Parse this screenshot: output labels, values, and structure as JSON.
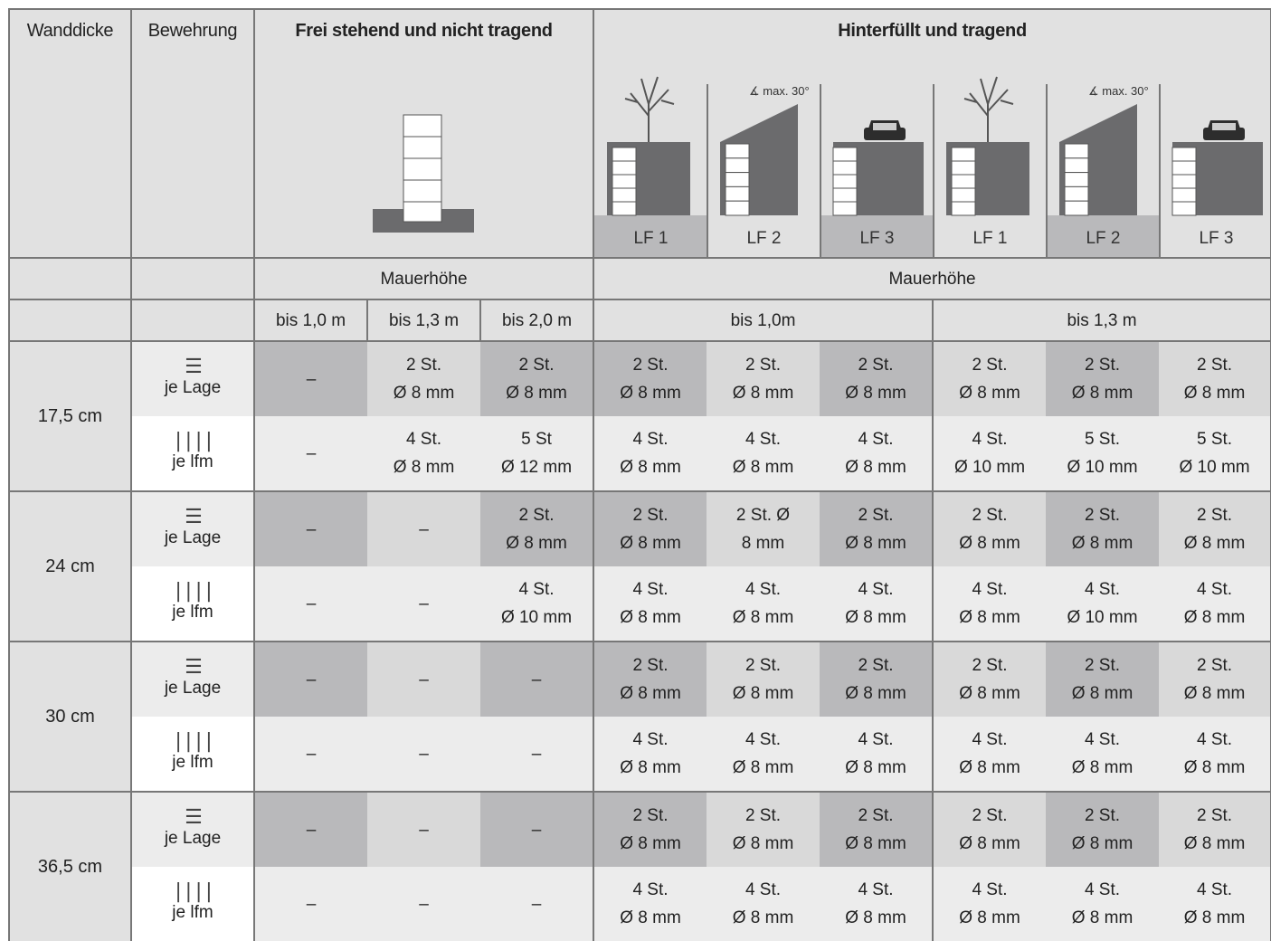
{
  "header": {
    "wanddicke": "Wanddicke",
    "bewehrung": "Bewehrung",
    "frei": "Frei stehend und nicht tragend",
    "hinter": "Hinterfüllt und tragend",
    "lf_labels": [
      "LF 1",
      "LF 2",
      "LF 3",
      "LF 1",
      "LF 2",
      "LF 3"
    ],
    "slope_label": "max. 30°"
  },
  "mauerhoehe_left": "Mauerhöhe",
  "mauerhoehe_right": "Mauerhöhe",
  "heights_left": [
    "bis 1,0  m",
    "bis 1,3 m",
    "bis 2,0 m"
  ],
  "heights_right": [
    "bis 1,0m",
    "bis 1,3 m"
  ],
  "bew": {
    "lage": "je Lage",
    "lfm": "je lfm"
  },
  "groups": [
    {
      "wall": "17,5 cm",
      "lage": [
        [
          "–"
        ],
        [
          "2 St.",
          "Ø 8 mm"
        ],
        [
          "2 St.",
          "Ø 8 mm"
        ],
        [
          "2 St.",
          "Ø 8 mm"
        ],
        [
          "2 St.",
          "Ø 8 mm"
        ],
        [
          "2 St.",
          "Ø 8 mm"
        ],
        [
          "2 St.",
          "Ø 8 mm"
        ],
        [
          "2 St.",
          "Ø 8 mm"
        ],
        [
          "2 St.",
          "Ø 8 mm"
        ]
      ],
      "lfm": [
        [
          "–"
        ],
        [
          "4 St.",
          "Ø 8 mm"
        ],
        [
          "5 St",
          "Ø 12 mm"
        ],
        [
          "4 St.",
          "Ø 8 mm"
        ],
        [
          "4 St.",
          "Ø 8 mm"
        ],
        [
          "4 St.",
          "Ø 8 mm"
        ],
        [
          "4 St.",
          "Ø 10 mm"
        ],
        [
          "5 St.",
          "Ø 10 mm"
        ],
        [
          "5 St.",
          "Ø 10 mm"
        ]
      ]
    },
    {
      "wall": "24 cm",
      "lage": [
        [
          "–"
        ],
        [
          "–"
        ],
        [
          "2 St.",
          "Ø 8 mm"
        ],
        [
          "2 St.",
          "Ø 8 mm"
        ],
        [
          "2 St. Ø",
          "8 mm"
        ],
        [
          "2 St.",
          "Ø 8 mm"
        ],
        [
          "2 St.",
          "Ø 8 mm"
        ],
        [
          "2 St.",
          "Ø 8 mm"
        ],
        [
          "2 St.",
          "Ø 8 mm"
        ]
      ],
      "lfm": [
        [
          "–"
        ],
        [
          "–"
        ],
        [
          "4 St.",
          "Ø 10 mm"
        ],
        [
          "4 St.",
          "Ø 8 mm"
        ],
        [
          "4 St.",
          "Ø 8 mm"
        ],
        [
          "4 St.",
          "Ø 8 mm"
        ],
        [
          "4 St.",
          "Ø 8 mm"
        ],
        [
          "4 St.",
          "Ø 10 mm"
        ],
        [
          "4 St.",
          "Ø 8 mm"
        ]
      ]
    },
    {
      "wall": "30 cm",
      "lage": [
        [
          "–"
        ],
        [
          "–"
        ],
        [
          "–"
        ],
        [
          "2 St.",
          "Ø 8 mm"
        ],
        [
          "2 St.",
          "Ø 8 mm"
        ],
        [
          "2 St.",
          "Ø 8 mm"
        ],
        [
          "2 St.",
          "Ø 8 mm"
        ],
        [
          "2 St.",
          "Ø 8 mm"
        ],
        [
          "2 St.",
          "Ø 8 mm"
        ]
      ],
      "lfm": [
        [
          "–"
        ],
        [
          "–"
        ],
        [
          "–"
        ],
        [
          "4 St.",
          "Ø 8 mm"
        ],
        [
          "4 St.",
          "Ø 8 mm"
        ],
        [
          "4 St.",
          "Ø 8 mm"
        ],
        [
          "4 St.",
          "Ø 8 mm"
        ],
        [
          "4 St.",
          "Ø 8 mm"
        ],
        [
          "4 St.",
          "Ø 8 mm"
        ]
      ]
    },
    {
      "wall": "36,5 cm",
      "lage": [
        [
          "–"
        ],
        [
          "–"
        ],
        [
          "–"
        ],
        [
          "2 St.",
          "Ø 8 mm"
        ],
        [
          "2 St.",
          "Ø 8 mm"
        ],
        [
          "2 St.",
          "Ø 8 mm"
        ],
        [
          "2 St.",
          "Ø 8 mm"
        ],
        [
          "2 St.",
          "Ø 8 mm"
        ],
        [
          "2 St.",
          "Ø 8 mm"
        ]
      ],
      "lfm": [
        [
          "–"
        ],
        [
          "–"
        ],
        [
          "–"
        ],
        [
          "4 St.",
          "Ø 8 mm"
        ],
        [
          "4 St.",
          "Ø 8 mm"
        ],
        [
          "4 St.",
          "Ø 8 mm"
        ],
        [
          "4 St.",
          "Ø 8 mm"
        ],
        [
          "4 St.",
          "Ø 8 mm"
        ],
        [
          "4 St.",
          "Ø 8 mm"
        ]
      ]
    }
  ],
  "shades": {
    "lage": [
      "dark",
      "mid",
      "dark",
      "dark",
      "mid",
      "dark",
      "mid",
      "dark",
      "mid"
    ],
    "lfm": [
      "lite",
      "lite",
      "lite",
      "lite",
      "lite",
      "lite",
      "lite",
      "lite",
      "lite"
    ]
  },
  "colors": {
    "dark_cell": "#b9b9bb",
    "mid_cell": "#d9d9d9",
    "light_cell": "#ececec",
    "border": "#777777",
    "wall_fill": "#6b6b6d"
  }
}
